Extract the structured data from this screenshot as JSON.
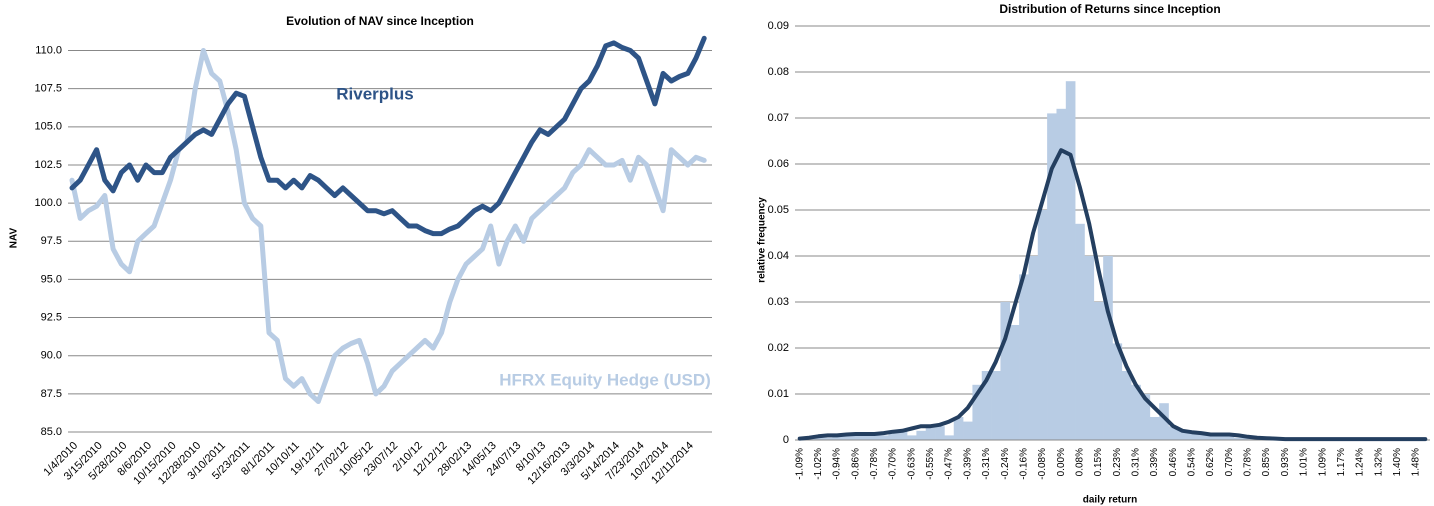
{
  "chart_data": [
    {
      "type": "line",
      "title": "Evolution of NAV since Inception",
      "y_label": "NAV",
      "categories": [
        "1/4/2010",
        null,
        null,
        "3/15/2010",
        null,
        null,
        "5/28/2010",
        null,
        null,
        "8/6/2010",
        null,
        null,
        "10/15/2010",
        null,
        null,
        "12/28/2010",
        null,
        null,
        "3/10/2011",
        null,
        null,
        "5/23/2011",
        null,
        null,
        "8/1/2011",
        null,
        null,
        "10/10/11",
        null,
        null,
        "19/12/11",
        null,
        null,
        "27/02/12",
        null,
        null,
        "10/05/12",
        null,
        null,
        "23/07/12",
        null,
        null,
        "2/10/12",
        null,
        null,
        "12/12/12",
        null,
        null,
        "28/02/13",
        null,
        null,
        "14/05/13",
        null,
        null,
        "24/07/13",
        null,
        null,
        "8/10/13",
        null,
        null,
        "12/16/2013",
        null,
        null,
        "3/3/2014",
        null,
        null,
        "5/14/2014",
        null,
        null,
        "7/23/2014",
        null,
        null,
        "10/2/2014",
        null,
        null,
        "12/11/2014",
        null,
        null
      ],
      "series": [
        {
          "name": "Riverplus",
          "color": "#2e5487",
          "values": [
            101.0,
            101.5,
            102.5,
            103.5,
            101.5,
            100.8,
            102.0,
            102.5,
            101.5,
            102.5,
            102.0,
            102.0,
            103.0,
            103.5,
            104.0,
            104.5,
            104.8,
            104.5,
            105.5,
            106.5,
            107.2,
            107.0,
            105.0,
            103.0,
            101.5,
            101.5,
            101.0,
            101.5,
            101.0,
            101.8,
            101.5,
            101.0,
            100.5,
            101.0,
            100.5,
            100.0,
            99.5,
            99.5,
            99.3,
            99.5,
            99.0,
            98.5,
            98.5,
            98.2,
            98.0,
            98.0,
            98.3,
            98.5,
            99.0,
            99.5,
            99.8,
            99.5,
            100.0,
            101.0,
            102.0,
            103.0,
            104.0,
            104.8,
            104.5,
            105.0,
            105.5,
            106.5,
            107.5,
            108.0,
            109.0,
            110.3,
            110.5,
            110.2,
            110.0,
            109.5,
            108.0,
            106.5,
            108.5,
            108.0,
            108.3,
            108.5,
            109.5,
            110.8
          ]
        },
        {
          "name": "HFRX Equity Hedge (USD)",
          "color": "#b8cce4",
          "values": [
            101.5,
            99.0,
            99.5,
            99.8,
            100.5,
            97.0,
            96.0,
            95.5,
            97.5,
            98.0,
            98.5,
            100.0,
            101.5,
            103.5,
            104.0,
            107.5,
            110.0,
            108.5,
            108.0,
            106.0,
            103.5,
            100.0,
            99.0,
            98.5,
            91.5,
            91.0,
            88.5,
            88.0,
            88.5,
            87.5,
            87.0,
            88.5,
            90.0,
            90.5,
            90.8,
            91.0,
            89.5,
            87.5,
            88.0,
            89.0,
            89.5,
            90.0,
            90.5,
            91.0,
            90.5,
            91.5,
            93.5,
            95.0,
            96.0,
            96.5,
            97.0,
            98.5,
            96.0,
            97.5,
            98.5,
            97.5,
            99.0,
            99.5,
            100.0,
            100.5,
            101.0,
            102.0,
            102.5,
            103.5,
            103.0,
            102.5,
            102.5,
            102.8,
            101.5,
            103.0,
            102.5,
            101.0,
            99.5,
            103.5,
            103.0,
            102.5,
            103.0,
            102.8
          ]
        }
      ],
      "ylim": [
        85,
        112
      ],
      "yticks": [
        {
          "value": 85,
          "label": "85.0"
        },
        {
          "value": 87.5,
          "label": "87.5"
        },
        {
          "value": 90,
          "label": "90.0"
        },
        {
          "value": 92.5,
          "label": "92.5"
        },
        {
          "value": 95,
          "label": "95.0"
        },
        {
          "value": 97.5,
          "label": "97.5"
        },
        {
          "value": 100,
          "label": "100.0"
        },
        {
          "value": 102.5,
          "label": "102.5"
        },
        {
          "value": 105,
          "label": "105.0"
        },
        {
          "value": 107.5,
          "label": "107.5"
        },
        {
          "value": 110,
          "label": "110.0"
        }
      ],
      "grid": true
    },
    {
      "type": "bar",
      "title": "Distribution of Returns since Inception",
      "x_label": "daily return",
      "y_label": "relative frequency",
      "categories": [
        "-1.09%",
        null,
        "-1.02%",
        null,
        "-0.94%",
        null,
        "-0.86%",
        null,
        "-0.78%",
        null,
        "-0.70%",
        null,
        "-0.63%",
        null,
        "-0.55%",
        null,
        "-0.47%",
        null,
        "-0.39%",
        null,
        "-0.31%",
        null,
        "-0.24%",
        null,
        "-0.16%",
        null,
        "-0.08%",
        null,
        "0.00%",
        null,
        "0.08%",
        null,
        "0.15%",
        null,
        "0.23%",
        null,
        "0.31%",
        null,
        "0.39%",
        null,
        "0.46%",
        null,
        "0.54%",
        null,
        "0.62%",
        null,
        "0.70%",
        null,
        "0.78%",
        null,
        "0.85%",
        null,
        "0.93%",
        null,
        "1.01%",
        null,
        "1.09%",
        null,
        "1.17%",
        null,
        "1.24%",
        null,
        "1.32%",
        null,
        "1.40%",
        null,
        "1.48%",
        null
      ],
      "series": [
        {
          "type": "bar",
          "color": "#b8cce4",
          "values": [
            0,
            0.0005,
            0.001,
            0.0005,
            0.001,
            0.001,
            0.001,
            0.001,
            0.0012,
            0.001,
            0.002,
            0.002,
            0.001,
            0.002,
            0.003,
            0.003,
            0.001,
            0.005,
            0.004,
            0.012,
            0.015,
            0.015,
            0.03,
            0.025,
            0.036,
            0.04,
            0.05,
            0.071,
            0.072,
            0.078,
            0.047,
            0.04,
            0.03,
            0.04,
            0.021,
            0.015,
            0.012,
            0.01,
            0.005,
            0.008,
            0.003,
            0.002,
            0.002,
            0.0015,
            0.001,
            0.001,
            0.001,
            0.0005,
            0.0005,
            0.0005,
            0.0003,
            0,
            0,
            0,
            0,
            0,
            0.0005,
            0,
            0,
            0.0003,
            0,
            0,
            0.0003,
            0,
            0,
            0.0003,
            0,
            0
          ]
        },
        {
          "type": "line",
          "color": "#243f60",
          "values": [
            0.0003,
            0.0005,
            0.0008,
            0.001,
            0.001,
            0.0012,
            0.0013,
            0.0013,
            0.0013,
            0.0015,
            0.0018,
            0.002,
            0.0025,
            0.003,
            0.003,
            0.0033,
            0.004,
            0.005,
            0.007,
            0.01,
            0.013,
            0.017,
            0.022,
            0.029,
            0.036,
            0.045,
            0.052,
            0.059,
            0.063,
            0.062,
            0.055,
            0.047,
            0.037,
            0.028,
            0.021,
            0.016,
            0.012,
            0.009,
            0.007,
            0.005,
            0.003,
            0.002,
            0.0017,
            0.0015,
            0.0012,
            0.0012,
            0.0012,
            0.001,
            0.0007,
            0.0005,
            0.0004,
            0.0003,
            0.0002,
            0.0002,
            0.0002,
            0.0002,
            0.0002,
            0.0002,
            0.0002,
            0.0002,
            0.0002,
            0.0002,
            0.0002,
            0.0002,
            0.0002,
            0.0002,
            0.0002,
            0.0002
          ]
        }
      ],
      "ylim": [
        0,
        0.09
      ],
      "yticks": [
        0,
        0.01,
        0.02,
        0.03,
        0.04,
        0.05,
        0.06,
        0.07,
        0.08,
        0.09
      ],
      "grid": true
    }
  ]
}
